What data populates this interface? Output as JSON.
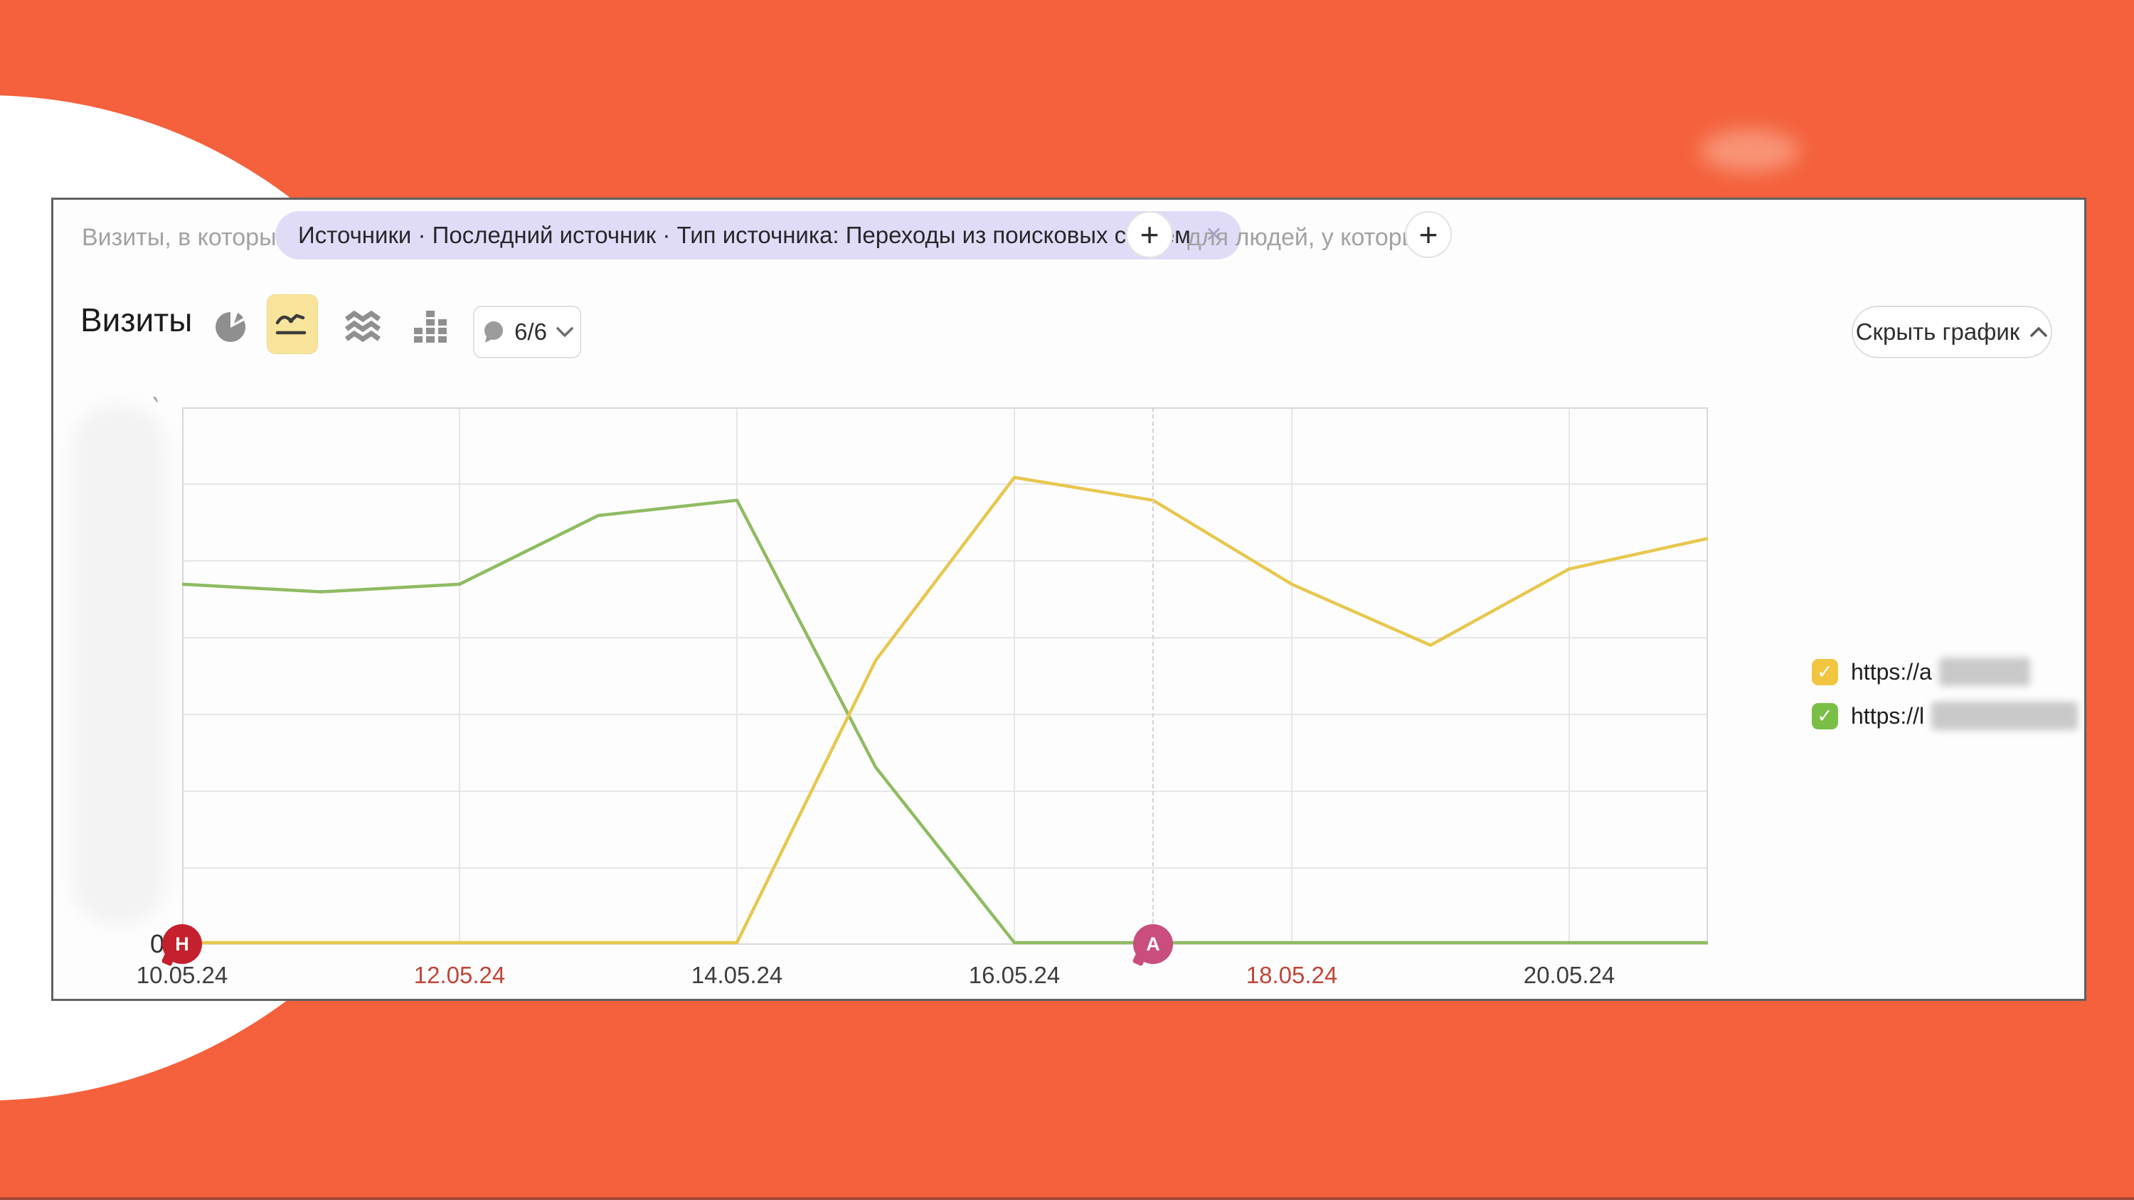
{
  "colors": {
    "background_orange": "#f4613c",
    "chip_background": "#e0dcf8",
    "selected_icon_background": "#f8e59b",
    "grid_line": "#e6e6e6",
    "plot_border": "#d8d8d8",
    "tick_weekend_red": "#bf4538",
    "tick_weekday_dark": "#3d3d3d"
  },
  "filter_bar": {
    "label_left": "Визиты, в которых",
    "chip_text": "Источники · Последний источник · Тип источника: Переходы из поисковых систем",
    "chip_close": "✕",
    "add_button": "+",
    "label_right": "для людей, у которых",
    "add_button2": "+"
  },
  "toolbar": {
    "title": "Визиты",
    "chart_types": [
      {
        "name": "pie",
        "selected": false
      },
      {
        "name": "line",
        "selected": true
      },
      {
        "name": "stacked-area",
        "selected": false
      },
      {
        "name": "columns",
        "selected": false
      }
    ],
    "comments_count": "6/6",
    "hide_chart_label": "Скрыть график"
  },
  "chart_data": {
    "type": "line",
    "title": "Визиты",
    "x": [
      "10.05.24",
      "11.05.24",
      "12.05.24",
      "13.05.24",
      "14.05.24",
      "15.05.24",
      "16.05.24",
      "17.05.24",
      "18.05.24",
      "19.05.24",
      "20.05.24",
      "21.05.24"
    ],
    "x_ticks": [
      {
        "label": "10.05.24",
        "weekend": false
      },
      {
        "label": "12.05.24",
        "weekend": true
      },
      {
        "label": "14.05.24",
        "weekend": false
      },
      {
        "label": "16.05.24",
        "weekend": false
      },
      {
        "label": "18.05.24",
        "weekend": true
      },
      {
        "label": "20.05.24",
        "weekend": false
      }
    ],
    "y_zero_label": "0",
    "ylim": [
      0,
      70
    ],
    "grid": true,
    "units_note": "y-axis tick labels are blurred in the source; values estimated in gridline units (1 division = 10)",
    "series": [
      {
        "name": "https://a… (rest redacted)",
        "color": "#e7c74f",
        "values": [
          0,
          0,
          0,
          0,
          0,
          37,
          61,
          58,
          47,
          39,
          49,
          53
        ]
      },
      {
        "name": "https://l… (rest redacted)",
        "color": "#8fbb62",
        "values": [
          47,
          46,
          47,
          56,
          58,
          23,
          0,
          0,
          0,
          0,
          0,
          0
        ]
      }
    ],
    "annotations": [
      {
        "letter": "Н",
        "x": "10.05.24",
        "color": "#c5202e",
        "dashed_line": false
      },
      {
        "letter": "А",
        "x": "17.05.24",
        "color": "#c94d7d",
        "dashed_line": true
      }
    ],
    "legend_position": "right"
  },
  "legend": {
    "items": [
      {
        "label": "https://a",
        "color": "#f1c53f",
        "checked": true,
        "check_glyph": "✓",
        "redacted_rest": true
      },
      {
        "label": "https://l",
        "color": "#79bf45",
        "checked": true,
        "check_glyph": "✓",
        "redacted_rest": true
      }
    ]
  }
}
